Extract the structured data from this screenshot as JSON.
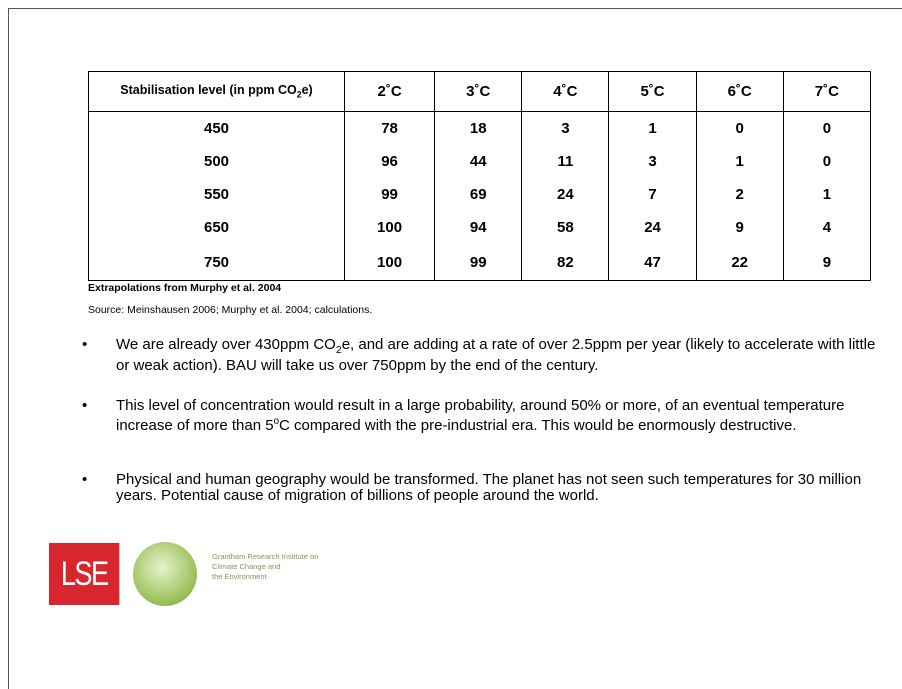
{
  "table": {
    "header": {
      "label": {
        "before": "Stabilisation level (in ppm CO",
        "sub": "2",
        "after": "e)"
      },
      "columns": [
        "2˚C",
        "3˚C",
        "4˚C",
        "5˚C",
        "6˚C",
        "7˚C"
      ]
    },
    "rows": [
      [
        450,
        78,
        18,
        3,
        1,
        0,
        0
      ],
      [
        500,
        96,
        44,
        11,
        3,
        1,
        0
      ],
      [
        550,
        99,
        69,
        24,
        7,
        2,
        1
      ],
      [
        650,
        100,
        94,
        58,
        24,
        9,
        4
      ],
      [
        750,
        100,
        99,
        82,
        47,
        22,
        9
      ]
    ]
  },
  "caption": "Extrapolations from Murphy et al. 2004",
  "source": "Source: Meinshausen 2006; Murphy et al. 2004; calculations.",
  "bullets": [
    {
      "before": "We are already over 430ppm CO",
      "sub": "2",
      "after": "e, and are adding at a rate of over 2.5ppm per year (likely to accelerate with little or weak action). BAU will take us over 750ppm by the end of the century."
    },
    {
      "before": "This level of concentration would result in a large probability, around 50% or more, of an eventual temperature increase of more than 5",
      "sup": "o",
      "after": "C compared with the pre-industrial era. This would be enormously destructive."
    },
    {
      "before": "Physical and human geography would be transformed. The planet has not seen such temperatures for 30 million years. Potential cause of migration of billions of people around the world."
    }
  ],
  "logos": {
    "lse": "LSE",
    "grantham": [
      "Grantham Research Institute on",
      "Climate Change and",
      "the Environment"
    ]
  }
}
